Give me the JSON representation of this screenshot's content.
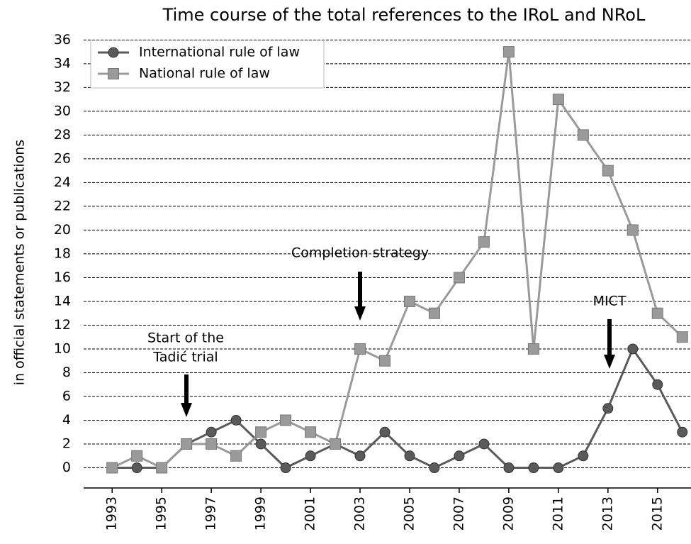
{
  "chart_data": {
    "type": "line",
    "title": "Time course of the total references to the IRoL and NRoL",
    "ylabel": "in official statements or publications",
    "x": [
      1993,
      1994,
      1995,
      1996,
      1997,
      1998,
      1999,
      2000,
      2001,
      2002,
      2003,
      2004,
      2005,
      2006,
      2007,
      2008,
      2009,
      2010,
      2011,
      2012,
      2013,
      2014,
      2015,
      2016
    ],
    "series": [
      {
        "name": "International rule of law",
        "color": "#5a5a5a",
        "marker": "circle",
        "values": [
          0,
          0,
          0,
          2,
          3,
          4,
          2,
          0,
          1,
          2,
          1,
          3,
          1,
          0,
          1,
          2,
          0,
          0,
          0,
          1,
          5,
          10,
          7,
          3
        ]
      },
      {
        "name": "National rule of law",
        "color": "#9a9a9a",
        "marker": "square",
        "values": [
          0,
          1,
          0,
          2,
          2,
          1,
          3,
          4,
          3,
          2,
          10,
          9,
          14,
          13,
          16,
          19,
          35,
          10,
          31,
          28,
          25,
          20,
          13,
          11
        ]
      }
    ],
    "xlim": [
      1991.85,
      2016.35
    ],
    "xticks": [
      1993,
      1995,
      1997,
      1999,
      2001,
      2003,
      2005,
      2007,
      2009,
      2011,
      2013,
      2015
    ],
    "ylim": [
      -1.7,
      36.2
    ],
    "yticks": [
      0,
      2,
      4,
      6,
      8,
      10,
      12,
      14,
      16,
      18,
      20,
      22,
      24,
      26,
      28,
      30,
      32,
      34,
      36
    ],
    "grid": true,
    "legend": "upper left",
    "annotations": [
      {
        "lines": [
          "Completion strategy"
        ]
      },
      {
        "lines": [
          "Start of the",
          "Tadić trial"
        ]
      },
      {
        "lines": [
          "MICT"
        ]
      }
    ]
  }
}
